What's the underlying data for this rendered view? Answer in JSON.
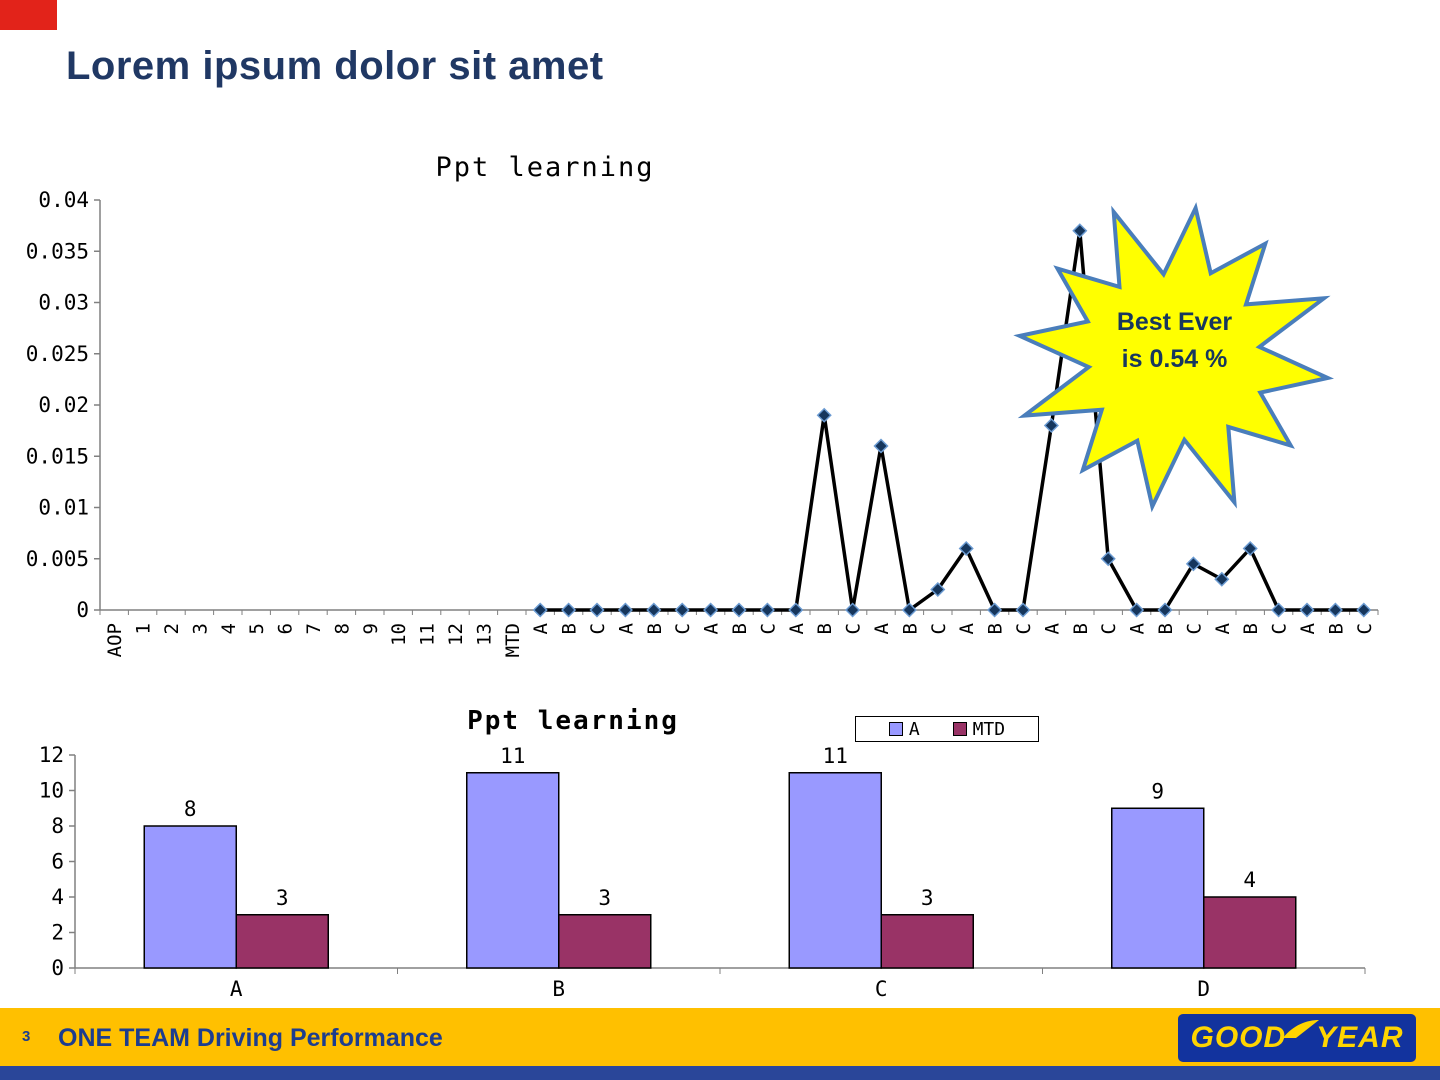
{
  "slide": {
    "title": "Lorem ipsum dolor sit amet",
    "page_number": "3",
    "footer_text": "ONE TEAM Driving Performance",
    "logo_part1": "GOOD",
    "logo_part2": "YEAR"
  },
  "callout": {
    "line1": "Best Ever",
    "line2": "is 0.54 %"
  },
  "colors": {
    "title_text": "#203864",
    "corner_block": "#E2231A",
    "footer_bar": "#FFC000",
    "footer_strip": "#2A4699",
    "footer_text": "#1D3D8F",
    "logo_bg": "#12339E",
    "logo_text": "#FFD500",
    "callout_fill": "#FFFF00",
    "callout_stroke": "#4A7EBB",
    "callout_text": "#17375E",
    "line_color": "#000000",
    "marker_fill": "#16365C",
    "marker_stroke": "#6B9BD2",
    "axis_color": "#808080"
  },
  "chart_data": [
    {
      "type": "line",
      "title": "Ppt learning",
      "categories": [
        "AOP",
        "1",
        "2",
        "3",
        "4",
        "5",
        "6",
        "7",
        "8",
        "9",
        "10",
        "11",
        "12",
        "13",
        "MTD",
        "A",
        "B",
        "C",
        "A",
        "B",
        "C",
        "A",
        "B",
        "C",
        "A",
        "B",
        "C",
        "A",
        "B",
        "C",
        "A",
        "B",
        "C",
        "A",
        "B",
        "C",
        "A",
        "B",
        "C",
        "A",
        "B",
        "C",
        "A",
        "B",
        "C"
      ],
      "series": [
        {
          "name": "",
          "values": [
            null,
            null,
            null,
            null,
            null,
            null,
            null,
            null,
            null,
            null,
            null,
            null,
            null,
            null,
            null,
            0,
            0,
            0,
            0,
            0,
            0,
            0,
            0,
            0,
            0,
            0.019,
            0,
            0.016,
            0,
            0.002,
            0.006,
            0,
            0,
            0.018,
            0.037,
            0.005,
            0,
            0,
            0.0045,
            0.003,
            0.006,
            0,
            0,
            0,
            0
          ]
        }
      ],
      "ylim": [
        0,
        0.04
      ],
      "yticks": [
        0,
        0.005,
        0.01,
        0.015,
        0.02,
        0.025,
        0.03,
        0.035,
        0.04
      ],
      "ytick_labels": [
        "0",
        "0.005",
        "0.01",
        "0.015",
        "0.02",
        "0.025",
        "0.03",
        "0.035",
        "0.04"
      ],
      "grid": false,
      "legend": false,
      "annotation": "Best Ever is 0.54 %"
    },
    {
      "type": "bar",
      "title": "Ppt learning",
      "categories": [
        "A",
        "B",
        "C",
        "D"
      ],
      "series": [
        {
          "name": "A",
          "color": "#9999FF",
          "values": [
            8,
            11,
            11,
            9
          ]
        },
        {
          "name": "MTD",
          "color": "#993366",
          "values": [
            3,
            3,
            3,
            4
          ]
        }
      ],
      "data_labels": [
        [
          "8",
          "11",
          "11",
          "9"
        ],
        [
          "3",
          "3",
          "3",
          "4"
        ]
      ],
      "ylim": [
        0,
        12
      ],
      "yticks": [
        0,
        2,
        4,
        6,
        8,
        10,
        12
      ],
      "grid": false,
      "legend_position": "top-right"
    }
  ]
}
